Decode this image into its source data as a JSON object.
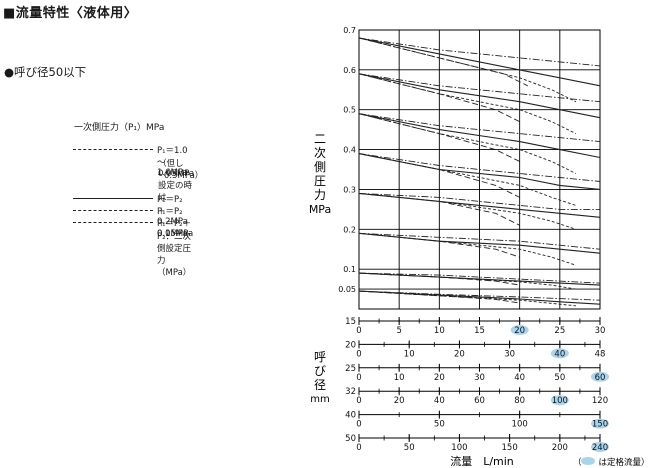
{
  "header": {
    "title": "■流量特性〈液体用〉",
    "subtitle": "●呼び径50以下"
  },
  "legend": {
    "title": "一次側圧力（P₁）MPa",
    "items": [
      {
        "style": "dash-dot",
        "label": "P₁＝1.0～1.6MPa",
        "note1": "（但し0.05MPa設定の時は",
        "note2": "0.5MPa）"
      },
      {
        "style": "solid",
        "label": "P₁＝P₂＋0.2MPa"
      },
      {
        "style": "dash",
        "label": "P₁＝P₂＋0.1MPa"
      },
      {
        "style": "dash-long",
        "label": "P₁＝P₂＋0.05MPa"
      }
    ],
    "p2_note": "P₂：二次側設定圧力（MPa）"
  },
  "axes": {
    "y_label_chars": [
      "二",
      "次",
      "側",
      "圧",
      "力"
    ],
    "y_unit": "MPa",
    "size_label_chars": [
      "呼",
      "び",
      "径"
    ],
    "size_unit": "mm",
    "x_label": "流量　L/min",
    "rated_note": "（　　は定格流量）"
  },
  "chart_data": {
    "type": "line",
    "ylim": [
      0,
      0.7
    ],
    "y_ticks": [
      0.05,
      0.1,
      0.2,
      0.3,
      0.4,
      0.5,
      0.6,
      0.7
    ],
    "x_unit": "L/min",
    "x_scales": [
      {
        "size": "15",
        "ticks": [
          0,
          5,
          10,
          15,
          20,
          25,
          30
        ],
        "max": 30,
        "rated": 20
      },
      {
        "size": "20",
        "ticks": [
          0,
          10,
          20,
          30,
          40,
          48
        ],
        "max": 48,
        "rated": 40
      },
      {
        "size": "25",
        "ticks": [
          0,
          10,
          20,
          30,
          40,
          50,
          60
        ],
        "max": 60,
        "rated": 60
      },
      {
        "size": "32",
        "ticks": [
          0,
          20,
          40,
          60,
          80,
          100,
          120
        ],
        "max": 120,
        "rated": 100
      },
      {
        "size": "40",
        "ticks": [
          0,
          50,
          100,
          150
        ],
        "max": 150,
        "rated": 150
      },
      {
        "size": "50",
        "ticks": [
          0,
          50,
          100,
          150,
          200,
          240
        ],
        "max": 240,
        "rated": 240
      }
    ],
    "reference_x": [
      0,
      5,
      10,
      15,
      20,
      25,
      30
    ],
    "curve_groups": [
      {
        "set_pressure": 0.7,
        "series": [
          {
            "style": "dash-dot",
            "x": [
              0,
              10,
              20,
              25,
              30
            ],
            "y": [
              0.68,
              0.65,
              0.63,
              0.62,
              0.61
            ]
          },
          {
            "style": "solid",
            "x": [
              0,
              10,
              20,
              25,
              30
            ],
            "y": [
              0.68,
              0.64,
              0.6,
              0.58,
              0.56
            ]
          },
          {
            "style": "dash",
            "x": [
              0,
              10,
              20,
              24,
              27
            ],
            "y": [
              0.68,
              0.63,
              0.58,
              0.55,
              0.52
            ]
          },
          {
            "style": "dash-long",
            "x": [
              0,
              10,
              18,
              21
            ],
            "y": [
              0.68,
              0.63,
              0.59,
              0.56
            ]
          }
        ]
      },
      {
        "set_pressure": 0.6,
        "series": [
          {
            "style": "dash-dot",
            "x": [
              0,
              10,
              20,
              25,
              30
            ],
            "y": [
              0.59,
              0.56,
              0.54,
              0.53,
              0.52
            ]
          },
          {
            "style": "solid",
            "x": [
              0,
              10,
              20,
              25,
              30
            ],
            "y": [
              0.59,
              0.55,
              0.52,
              0.5,
              0.48
            ]
          },
          {
            "style": "dash",
            "x": [
              0,
              10,
              20,
              24,
              27
            ],
            "y": [
              0.59,
              0.54,
              0.5,
              0.47,
              0.44
            ]
          },
          {
            "style": "dash-long",
            "x": [
              0,
              10,
              17,
              20
            ],
            "y": [
              0.59,
              0.54,
              0.5,
              0.47
            ]
          }
        ]
      },
      {
        "set_pressure": 0.5,
        "series": [
          {
            "style": "dash-dot",
            "x": [
              0,
              10,
              20,
              25,
              30
            ],
            "y": [
              0.49,
              0.46,
              0.44,
              0.43,
              0.42
            ]
          },
          {
            "style": "solid",
            "x": [
              0,
              10,
              20,
              25,
              30
            ],
            "y": [
              0.49,
              0.45,
              0.42,
              0.4,
              0.38
            ]
          },
          {
            "style": "dash",
            "x": [
              0,
              10,
              20,
              24,
              27
            ],
            "y": [
              0.49,
              0.44,
              0.4,
              0.37,
              0.34
            ]
          },
          {
            "style": "dash-long",
            "x": [
              0,
              10,
              17,
              20
            ],
            "y": [
              0.49,
              0.44,
              0.4,
              0.37
            ]
          }
        ]
      },
      {
        "set_pressure": 0.4,
        "series": [
          {
            "style": "dash-dot",
            "x": [
              0,
              10,
              20,
              25,
              30
            ],
            "y": [
              0.39,
              0.36,
              0.34,
              0.33,
              0.32
            ]
          },
          {
            "style": "solid",
            "x": [
              0,
              10,
              20,
              25,
              30
            ],
            "y": [
              0.39,
              0.35,
              0.33,
              0.31,
              0.3
            ]
          },
          {
            "style": "dash",
            "x": [
              0,
              10,
              20,
              24,
              27
            ],
            "y": [
              0.39,
              0.35,
              0.31,
              0.28,
              0.26
            ]
          },
          {
            "style": "dash-long",
            "x": [
              0,
              10,
              17,
              20
            ],
            "y": [
              0.39,
              0.35,
              0.31,
              0.28
            ]
          }
        ]
      },
      {
        "set_pressure": 0.3,
        "series": [
          {
            "style": "dash-dot",
            "x": [
              0,
              10,
              20,
              25,
              30
            ],
            "y": [
              0.29,
              0.28,
              0.26,
              0.25,
              0.25
            ]
          },
          {
            "style": "solid",
            "x": [
              0,
              10,
              20,
              25,
              30
            ],
            "y": [
              0.29,
              0.27,
              0.25,
              0.24,
              0.23
            ]
          },
          {
            "style": "dash",
            "x": [
              0,
              10,
              20,
              24,
              27
            ],
            "y": [
              0.29,
              0.27,
              0.24,
              0.22,
              0.2
            ]
          },
          {
            "style": "dash-long",
            "x": [
              0,
              10,
              17,
              20
            ],
            "y": [
              0.29,
              0.27,
              0.24,
              0.21
            ]
          }
        ]
      },
      {
        "set_pressure": 0.2,
        "series": [
          {
            "style": "dash-dot",
            "x": [
              0,
              10,
              20,
              25,
              30
            ],
            "y": [
              0.19,
              0.18,
              0.17,
              0.16,
              0.15
            ]
          },
          {
            "style": "solid",
            "x": [
              0,
              10,
              20,
              25,
              30
            ],
            "y": [
              0.19,
              0.17,
              0.16,
              0.15,
              0.14
            ]
          },
          {
            "style": "dash",
            "x": [
              0,
              10,
              20,
              24,
              27
            ],
            "y": [
              0.19,
              0.17,
              0.15,
              0.13,
              0.11
            ]
          },
          {
            "style": "dash-long",
            "x": [
              0,
              10,
              17,
              20
            ],
            "y": [
              0.19,
              0.17,
              0.15,
              0.13
            ]
          }
        ]
      },
      {
        "set_pressure": 0.1,
        "series": [
          {
            "style": "dash-dot",
            "x": [
              0,
              10,
              20,
              25,
              30
            ],
            "y": [
              0.09,
              0.085,
              0.075,
              0.07,
              0.065
            ]
          },
          {
            "style": "solid",
            "x": [
              0,
              10,
              20,
              25,
              30
            ],
            "y": [
              0.09,
              0.08,
              0.07,
              0.065,
              0.06
            ]
          },
          {
            "style": "dash",
            "x": [
              0,
              10,
              20,
              24,
              27
            ],
            "y": [
              0.09,
              0.08,
              0.068,
              0.06,
              0.05
            ]
          },
          {
            "style": "dash-long",
            "x": [
              0,
              10,
              17,
              20
            ],
            "y": [
              0.09,
              0.08,
              0.07,
              0.06
            ]
          }
        ]
      },
      {
        "set_pressure": 0.05,
        "series": [
          {
            "style": "dash-dot",
            "x": [
              0,
              10,
              20,
              25,
              30
            ],
            "y": [
              0.045,
              0.037,
              0.03,
              0.026,
              0.022
            ]
          },
          {
            "style": "solid",
            "x": [
              0,
              10,
              20,
              25,
              30
            ],
            "y": [
              0.045,
              0.035,
              0.025,
              0.018,
              0.012
            ]
          },
          {
            "style": "dash",
            "x": [
              0,
              10,
              20,
              24,
              27
            ],
            "y": [
              0.045,
              0.033,
              0.022,
              0.014,
              0.008
            ]
          },
          {
            "style": "dash-long",
            "x": [
              0,
              10,
              17,
              20
            ],
            "y": [
              0.045,
              0.033,
              0.024,
              0.015
            ]
          }
        ]
      }
    ],
    "colors": {
      "line": "#222222",
      "grid": "#000000",
      "rated_highlight": "#a9d4ee"
    }
  }
}
